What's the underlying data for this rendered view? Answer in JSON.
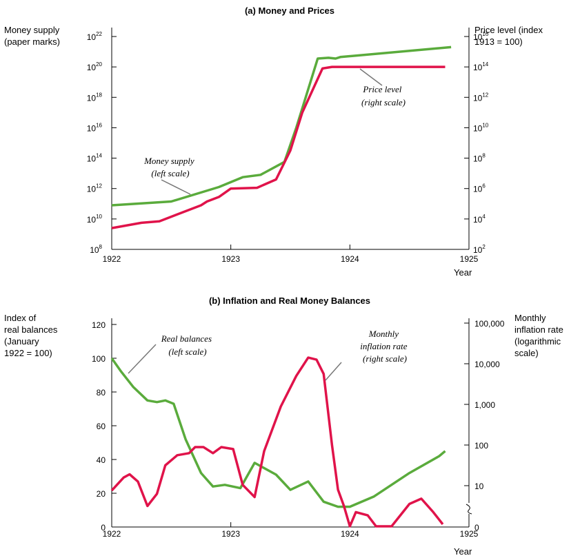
{
  "chart_data": [
    {
      "type": "line",
      "title": "(a) Money and Prices",
      "ylabel_left": [
        "Money supply",
        "(paper marks)"
      ],
      "ylabel_right": [
        "Price level (index",
        "1913 = 100)"
      ],
      "xlabel": "Year",
      "x_ticks": [
        "1922",
        "1923",
        "1924",
        "1925"
      ],
      "xlim": [
        1922,
        1925
      ],
      "y_left_scale": "log",
      "y_left_ticks": [
        {
          "base": "10",
          "exp": "8"
        },
        {
          "base": "10",
          "exp": "10"
        },
        {
          "base": "10",
          "exp": "12"
        },
        {
          "base": "10",
          "exp": "14"
        },
        {
          "base": "10",
          "exp": "16"
        },
        {
          "base": "10",
          "exp": "18"
        },
        {
          "base": "10",
          "exp": "20"
        },
        {
          "base": "10",
          "exp": "22"
        }
      ],
      "y_left_exp_range": [
        8,
        22
      ],
      "y_right_scale": "log",
      "y_right_ticks": [
        {
          "base": "10",
          "exp": "2"
        },
        {
          "base": "10",
          "exp": "4"
        },
        {
          "base": "10",
          "exp": "6"
        },
        {
          "base": "10",
          "exp": "8"
        },
        {
          "base": "10",
          "exp": "10"
        },
        {
          "base": "10",
          "exp": "12"
        },
        {
          "base": "10",
          "exp": "14"
        },
        {
          "base": "10",
          "exp": "16"
        }
      ],
      "y_right_exp_range": [
        2,
        16
      ],
      "series": [
        {
          "name": "Money supply",
          "axis": "left",
          "color": "#5aab3c",
          "values_log10": [
            [
              1922.0,
              10.9
            ],
            [
              1922.5,
              11.15
            ],
            [
              1922.9,
              12.1
            ],
            [
              1923.1,
              12.75
            ],
            [
              1923.25,
              12.9
            ],
            [
              1923.45,
              13.75
            ],
            [
              1923.55,
              16.0
            ],
            [
              1923.73,
              20.55
            ],
            [
              1923.82,
              20.6
            ],
            [
              1923.88,
              20.55
            ],
            [
              1923.92,
              20.65
            ],
            [
              1924.85,
              21.3
            ]
          ]
        },
        {
          "name": "Price level",
          "axis": "right",
          "color": "#e0134a",
          "values_log10": [
            [
              1922.0,
              3.4
            ],
            [
              1922.25,
              3.75
            ],
            [
              1922.4,
              3.85
            ],
            [
              1922.65,
              4.6
            ],
            [
              1922.75,
              4.9
            ],
            [
              1922.8,
              5.15
            ],
            [
              1922.9,
              5.45
            ],
            [
              1923.0,
              6.0
            ],
            [
              1923.22,
              6.05
            ],
            [
              1923.38,
              6.6
            ],
            [
              1923.5,
              8.5
            ],
            [
              1923.6,
              11.0
            ],
            [
              1923.77,
              13.9
            ],
            [
              1923.85,
              14.0
            ],
            [
              1924.8,
              14.0
            ]
          ]
        }
      ],
      "annotations": [
        {
          "lines": [
            "Money supply",
            "(left scale)"
          ]
        },
        {
          "lines": [
            "Price level",
            "(right scale)"
          ]
        }
      ]
    },
    {
      "type": "line",
      "title": "(b) Inflation and Real Money Balances",
      "ylabel_left": [
        "Index of",
        "real balances",
        "(January",
        "1922 = 100)"
      ],
      "ylabel_right": [
        "Monthly",
        "inflation rate",
        "(logarithmic",
        "scale)"
      ],
      "xlabel": "Year",
      "x_ticks": [
        "1922",
        "1923",
        "1924",
        "1925"
      ],
      "xlim": [
        1922,
        1925
      ],
      "y_left_ticks": [
        "0",
        "20",
        "40",
        "60",
        "80",
        "100",
        "120"
      ],
      "ylim_left": [
        0,
        120
      ],
      "y_right_scale": "log",
      "y_right_ticks": [
        "0",
        "10",
        "100",
        "1,000",
        "10,000",
        "100,000"
      ],
      "series": [
        {
          "name": "Real balances",
          "axis": "left",
          "color": "#5aab3c",
          "values": [
            [
              1922.0,
              100
            ],
            [
              1922.08,
              92
            ],
            [
              1922.18,
              83
            ],
            [
              1922.3,
              75
            ],
            [
              1922.38,
              74
            ],
            [
              1922.45,
              75
            ],
            [
              1922.52,
              73
            ],
            [
              1922.62,
              52
            ],
            [
              1922.75,
              32
            ],
            [
              1922.85,
              24
            ],
            [
              1922.95,
              25
            ],
            [
              1923.08,
              23
            ],
            [
              1923.2,
              38
            ],
            [
              1923.38,
              31
            ],
            [
              1923.5,
              22
            ],
            [
              1923.65,
              27
            ],
            [
              1923.78,
              15
            ],
            [
              1923.9,
              12
            ],
            [
              1924.0,
              12
            ],
            [
              1924.2,
              18
            ],
            [
              1924.5,
              32
            ],
            [
              1924.75,
              42
            ],
            [
              1924.8,
              45
            ]
          ]
        },
        {
          "name": "Monthly inflation rate",
          "axis": "right",
          "color": "#e0134a",
          "values_log10": [
            [
              1922.0,
              0.88
            ],
            [
              1922.1,
              1.2
            ],
            [
              1922.15,
              1.28
            ],
            [
              1922.22,
              1.1
            ],
            [
              1922.3,
              0.5
            ],
            [
              1922.38,
              0.8
            ],
            [
              1922.45,
              1.5
            ],
            [
              1922.55,
              1.75
            ],
            [
              1922.65,
              1.8
            ],
            [
              1922.7,
              1.95
            ],
            [
              1922.77,
              1.95
            ],
            [
              1922.85,
              1.8
            ],
            [
              1922.92,
              1.95
            ],
            [
              1923.02,
              1.9
            ],
            [
              1923.1,
              1.02
            ],
            [
              1923.2,
              0.72
            ],
            [
              1923.28,
              1.85
            ],
            [
              1923.42,
              2.95
            ],
            [
              1923.55,
              3.7
            ],
            [
              1923.65,
              4.15
            ],
            [
              1923.72,
              4.1
            ],
            [
              1923.78,
              3.75
            ],
            [
              1923.85,
              2.0
            ],
            [
              1923.9,
              0.9
            ],
            [
              1923.95,
              0.5
            ],
            [
              1924.0,
              0.0
            ],
            [
              1924.05,
              0.35
            ],
            [
              1924.15,
              0.27
            ],
            [
              1924.22,
              0.0
            ],
            [
              1924.35,
              0.0
            ],
            [
              1924.5,
              0.55
            ],
            [
              1924.6,
              0.68
            ],
            [
              1924.7,
              0.35
            ],
            [
              1924.78,
              0.05
            ]
          ]
        }
      ],
      "annotations": [
        {
          "lines": [
            "Real balances",
            "(left scale)"
          ]
        },
        {
          "lines": [
            "Monthly",
            "inflation rate",
            "(right scale)"
          ]
        }
      ]
    }
  ]
}
